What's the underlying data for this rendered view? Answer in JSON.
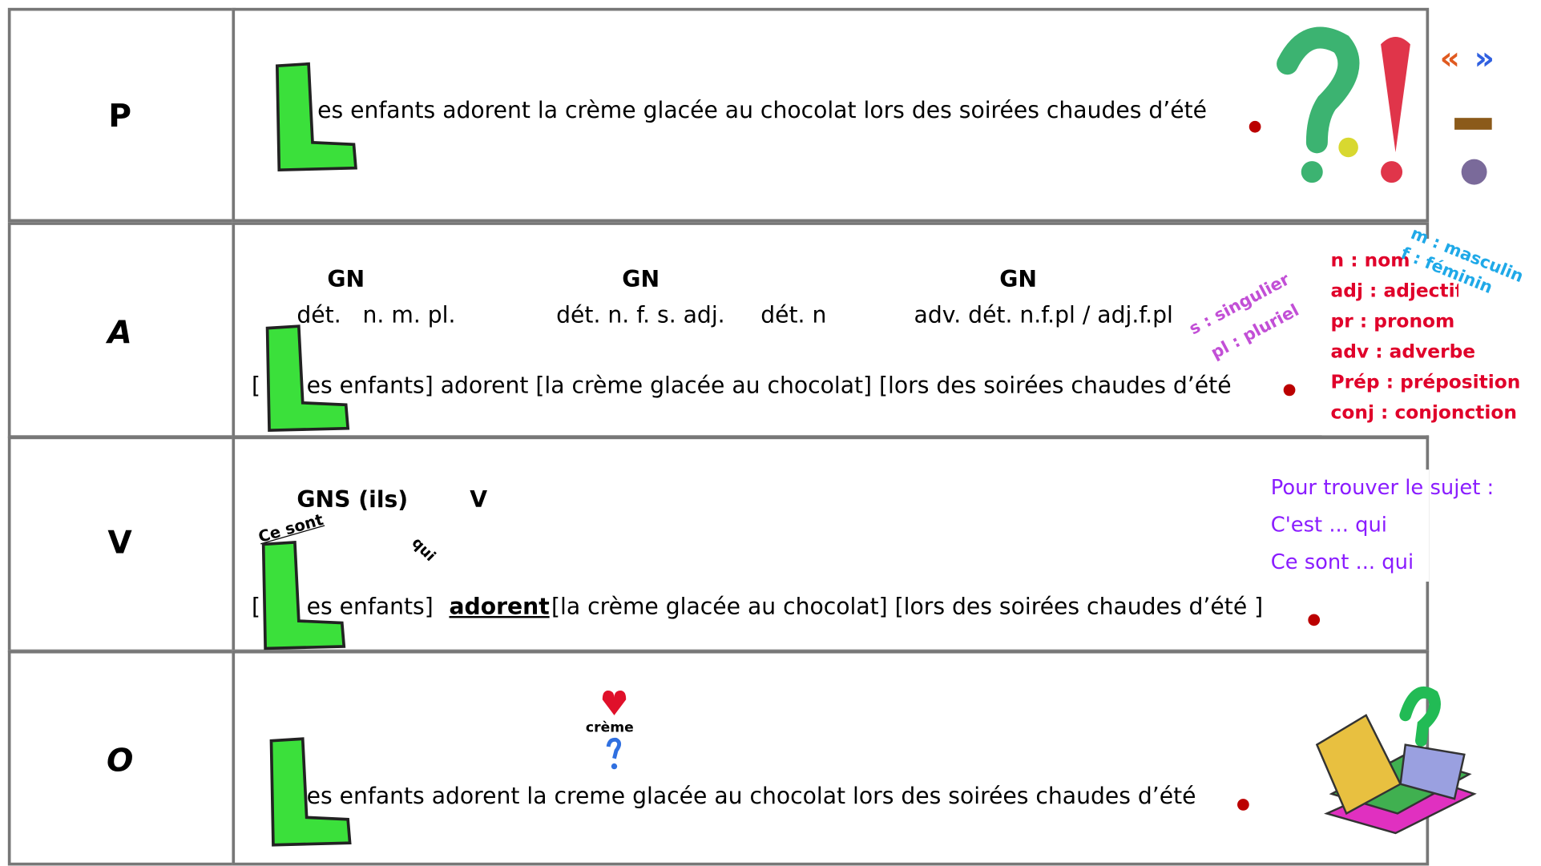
{
  "rows": [
    {
      "letter": "P",
      "sentence": "es enfants adorent la crème glacée au chocolat lors des soirées chaudes d’été"
    },
    {
      "letter": "A",
      "groups": [
        "GN",
        "GN",
        "GN"
      ],
      "labels": [
        "dét.   n. m. pl.",
        "dét. n. f. s. adj.",
        "dét. n",
        "adv. dét. n.f.pl / adj.f.pl"
      ],
      "bracket": "[",
      "sentence": "es enfants] adorent [la crème glacée au chocolat] [lors des soirées chaudes d’été",
      "number_notes": [
        "s : singulier",
        "pl : pluriel"
      ],
      "gender_notes": [
        "m : masculin",
        "f : féminin"
      ],
      "legend": [
        "n : nom",
        "adj : adjectif",
        "pr : pronom",
        "adv : adverbe",
        "Prép : préposition",
        "conj : conjonction"
      ]
    },
    {
      "letter": "V",
      "subject": "GNS (ils)",
      "verb_label": "V",
      "ce_sont": "Ce sont",
      "qui": "qui",
      "bracket": "[",
      "subject_text": "es enfants]",
      "verb": "adorent",
      "rest": "[la crème glacée au chocolat] [lors des soirées chaudes d’été ]",
      "tips": [
        "Pour trouver le sujet :",
        "C'est ... qui",
        "Ce sont ... qui"
      ]
    },
    {
      "letter": "O",
      "icon_word": "crème",
      "sentence": "es enfants adorent la creme glacée au chocolat lors des soirées chaudes d’été"
    }
  ]
}
